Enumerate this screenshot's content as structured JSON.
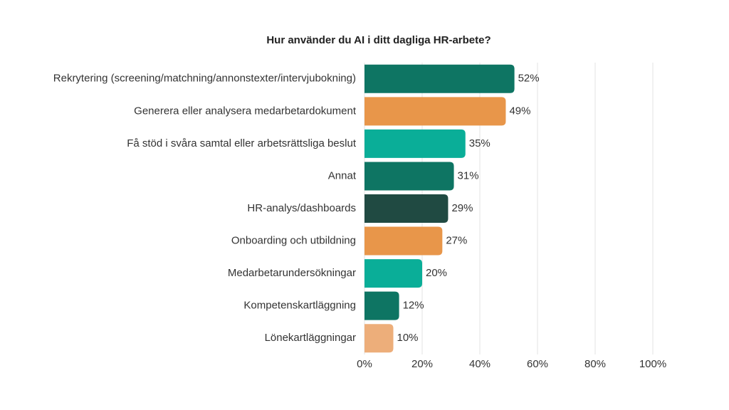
{
  "chart_data": {
    "type": "bar",
    "title": "Hur använder du AI i ditt dagliga HR-arbete?",
    "categories": [
      "Rekrytering (screening/matchning/annonstexter/intervjubokning)",
      "Generera eller analysera medarbetardokument",
      "Få stöd i svåra samtal eller arbetsrättsliga beslut",
      "Annat",
      "HR-analys/dashboards",
      "Onboarding och utbildning",
      "Medarbetarundersökningar",
      "Kompetenskartläggning",
      "Lönekartläggningar"
    ],
    "values": [
      52,
      49,
      35,
      31,
      29,
      27,
      20,
      12,
      10
    ],
    "value_labels": [
      "52%",
      "49%",
      "35%",
      "31%",
      "29%",
      "27%",
      "20%",
      "12%",
      "10%"
    ],
    "colors": [
      "#0e7563",
      "#e8964a",
      "#0aae98",
      "#0e7563",
      "#204a42",
      "#e8964a",
      "#0aae98",
      "#0e7563",
      "#edae7a"
    ],
    "xlim": [
      0,
      100
    ],
    "xticks": [
      {
        "value": 0,
        "label": "0%"
      },
      {
        "value": 20,
        "label": "20%"
      },
      {
        "value": 40,
        "label": "40%"
      },
      {
        "value": 60,
        "label": "60%"
      },
      {
        "value": 80,
        "label": "80%"
      },
      {
        "value": 100,
        "label": "100%"
      }
    ],
    "grid": true
  }
}
